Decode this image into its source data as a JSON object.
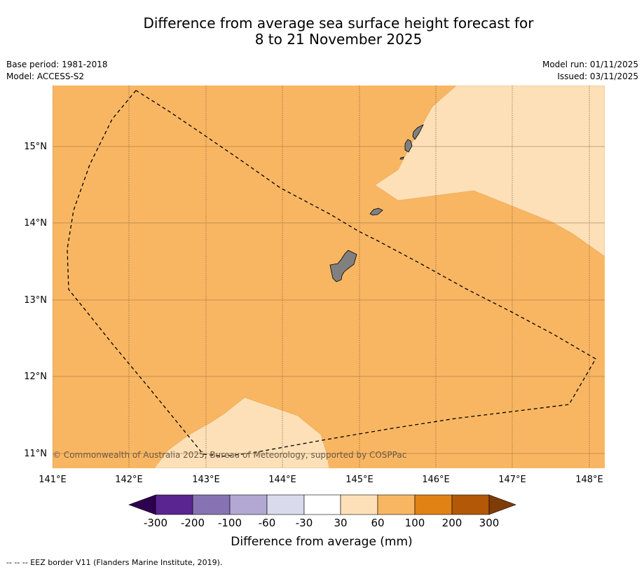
{
  "title": {
    "line1": "Difference from average sea surface height forecast for",
    "line2": "8 to 21 November 2025"
  },
  "meta": {
    "base_period": "Base period: 1981-2018",
    "model": "Model: ACCESS-S2",
    "model_run": "Model run: 01/11/2025",
    "issued": "Issued: 03/11/2025"
  },
  "map": {
    "lat_labels": [
      "15°N",
      "14°N",
      "13°N",
      "12°N",
      "11°N"
    ],
    "lon_labels": [
      "141°E",
      "142°E",
      "143°E",
      "144°E",
      "145°E",
      "146°E",
      "147°E",
      "148°E"
    ],
    "copyright": "© Commonwealth of Australia 2025, Bureau of Meteorology, supported by COSPPac",
    "colors": {
      "fill_60_100": "#f9b662",
      "fill_30_60": "#fde0b7",
      "land": "#808080"
    }
  },
  "colorbar": {
    "title": "Difference from average (mm)",
    "ticks": [
      "-300",
      "-200",
      "-100",
      "-60",
      "-30",
      "30",
      "60",
      "100",
      "200",
      "300"
    ],
    "colors": [
      "#2d0050",
      "#5a2590",
      "#8773b3",
      "#b2a8d3",
      "#d9daeb",
      "#ffffff",
      "#fde0b7",
      "#f9b662",
      "#e08214",
      "#b35806",
      "#7f3b08"
    ]
  },
  "footnote": "--  --  -- EEZ border V11 (Flanders Marine Institute, 2019)."
}
